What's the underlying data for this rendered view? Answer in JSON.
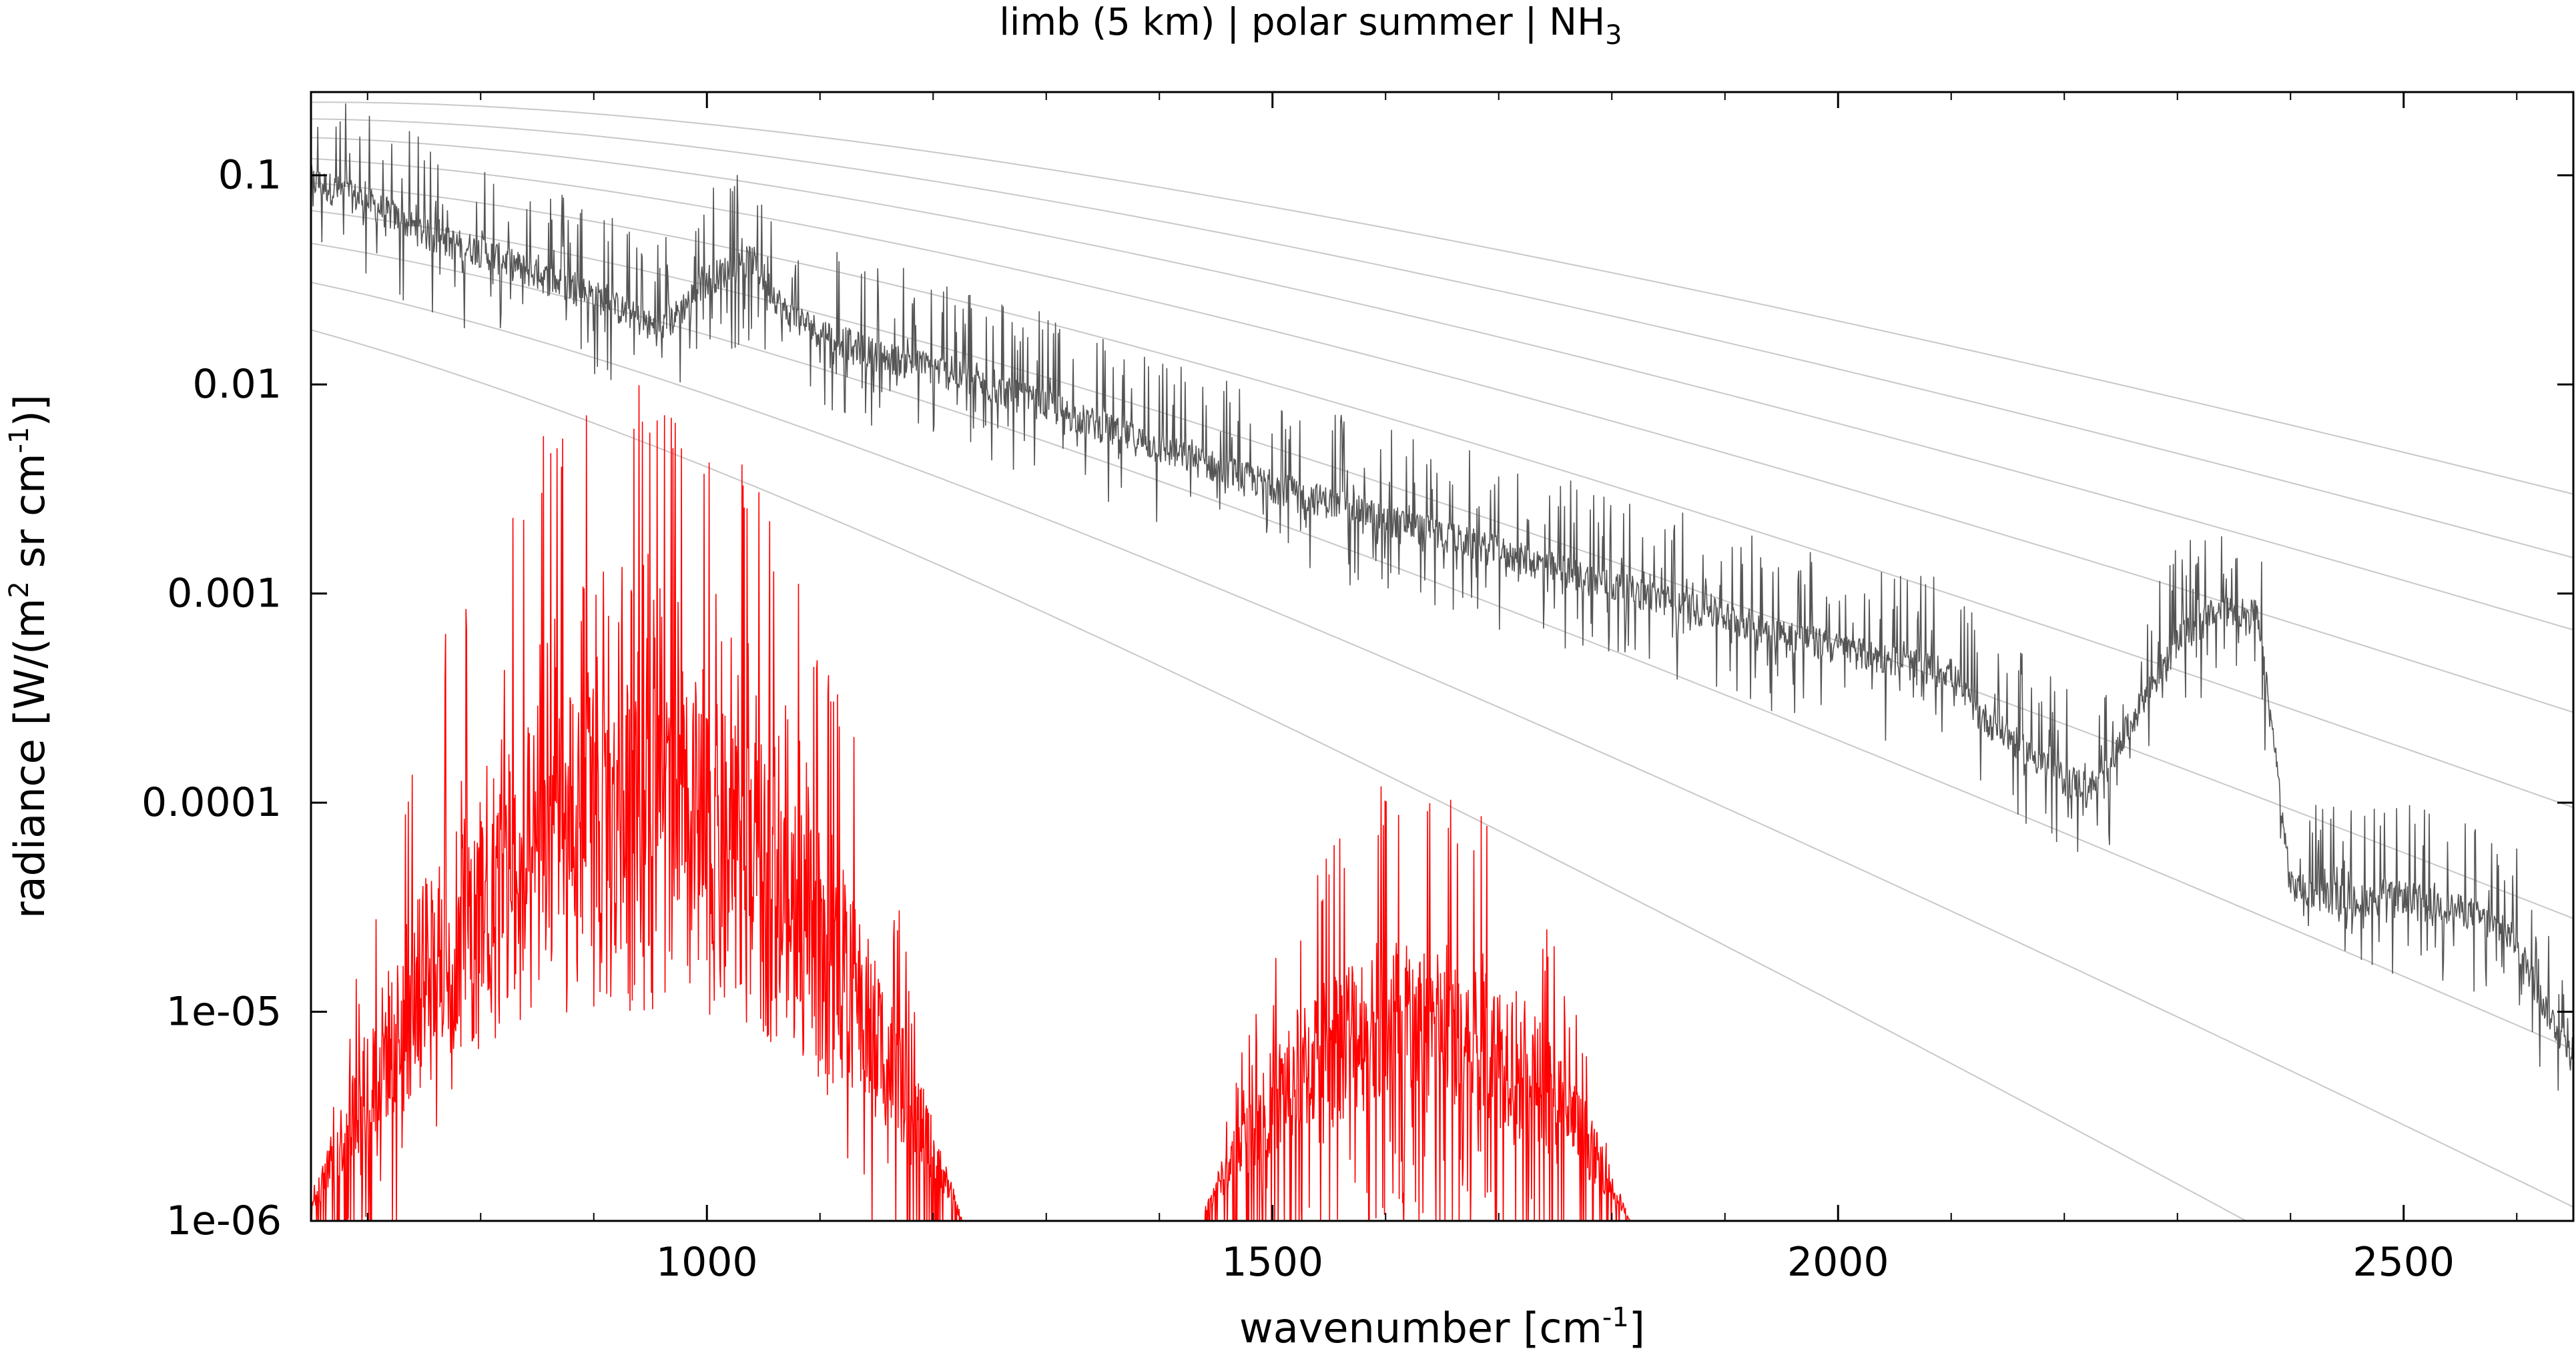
{
  "chart_data": {
    "type": "line",
    "title": "limb (5 km) | polar summer | NH",
    "title_subscript": "3",
    "xlabel": "wavenumber [cm",
    "xlabel_sup": "-1",
    "xlabel_end": "]",
    "ylabel": "radiance [W/(m",
    "ylabel_sup1": "2",
    "ylabel_mid": " sr cm",
    "ylabel_sup2": "-1",
    "ylabel_end": ")]",
    "xlim": [
      650,
      2650
    ],
    "ylim": [
      1e-06,
      0.25
    ],
    "y_scale": "log",
    "grid": false,
    "x_ticks": [
      1000,
      1500,
      2000,
      2500
    ],
    "x_tick_labels": [
      "1000",
      "1500",
      "2000",
      "2500"
    ],
    "y_ticks": [
      1e-06,
      1e-05,
      0.0001,
      0.001,
      0.01,
      0.1
    ],
    "y_tick_labels": [
      "1e-06",
      "1e-05",
      "0.0001",
      "0.001",
      "0.01",
      "0.1"
    ],
    "reference_curves": {
      "description_kind": "planck",
      "temperatures_K": [
        180,
        200,
        220,
        240,
        260,
        280,
        300,
        320,
        340
      ],
      "color": "#c8c8c8"
    },
    "series": [
      {
        "color": "#555555",
        "envelope": [
          {
            "x": 650,
            "y": 0.095
          },
          {
            "x": 700,
            "y": 0.075
          },
          {
            "x": 760,
            "y": 0.05
          },
          {
            "x": 800,
            "y": 0.044
          },
          {
            "x": 860,
            "y": 0.032
          },
          {
            "x": 900,
            "y": 0.027
          },
          {
            "x": 960,
            "y": 0.018
          },
          {
            "x": 1000,
            "y": 0.032
          },
          {
            "x": 1040,
            "y": 0.04
          },
          {
            "x": 1070,
            "y": 0.022
          },
          {
            "x": 1100,
            "y": 0.018
          },
          {
            "x": 1150,
            "y": 0.014
          },
          {
            "x": 1200,
            "y": 0.012
          },
          {
            "x": 1300,
            "y": 0.008
          },
          {
            "x": 1400,
            "y": 0.005
          },
          {
            "x": 1500,
            "y": 0.0033
          },
          {
            "x": 1600,
            "y": 0.0023
          },
          {
            "x": 1700,
            "y": 0.0016
          },
          {
            "x": 1800,
            "y": 0.0011
          },
          {
            "x": 1900,
            "y": 0.00078
          },
          {
            "x": 2000,
            "y": 0.00055
          },
          {
            "x": 2100,
            "y": 0.00042
          },
          {
            "x": 2120,
            "y": 0.00028
          },
          {
            "x": 2200,
            "y": 0.00013
          },
          {
            "x": 2230,
            "y": 0.00012
          },
          {
            "x": 2260,
            "y": 0.00025
          },
          {
            "x": 2300,
            "y": 0.0006
          },
          {
            "x": 2340,
            "y": 0.00085
          },
          {
            "x": 2370,
            "y": 0.0008
          },
          {
            "x": 2385,
            "y": 0.0002
          },
          {
            "x": 2400,
            "y": 4e-05
          },
          {
            "x": 2450,
            "y": 3.4e-05
          },
          {
            "x": 2500,
            "y": 3.6e-05
          },
          {
            "x": 2560,
            "y": 3e-05
          },
          {
            "x": 2600,
            "y": 2.2e-05
          },
          {
            "x": 2620,
            "y": 1.2e-05
          },
          {
            "x": 2650,
            "y": 6e-06
          }
        ]
      },
      {
        "color": "#ff0000",
        "bands": [
          {
            "x_start": 650,
            "x_end": 1230,
            "peak_x": 930,
            "peak_y": 0.01,
            "floor_y": 1e-06
          },
          {
            "x_start": 1440,
            "x_end": 1820,
            "peak_x": 1620,
            "peak_y": 0.00014,
            "floor_y": 1e-06
          }
        ]
      }
    ]
  }
}
